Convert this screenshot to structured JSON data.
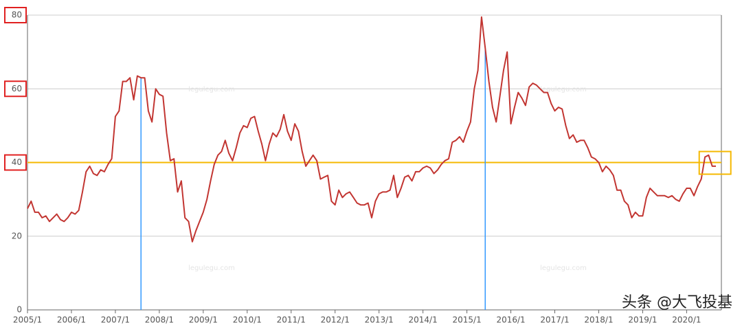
{
  "chart_data": {
    "type": "line",
    "categories": [
      "2005/1",
      null,
      null,
      null,
      null,
      null,
      null,
      null,
      null,
      null,
      null,
      null,
      "2006/1",
      null,
      null,
      null,
      null,
      null,
      null,
      null,
      null,
      null,
      null,
      null,
      "2007/1",
      null,
      null,
      null,
      null,
      null,
      null,
      null,
      null,
      null,
      null,
      null,
      "2008/1",
      null,
      null,
      null,
      null,
      null,
      null,
      null,
      null,
      null,
      null,
      null,
      "2009/1",
      null,
      null,
      null,
      null,
      null,
      null,
      null,
      null,
      null,
      null,
      null,
      "2010/1",
      null,
      null,
      null,
      null,
      null,
      null,
      null,
      null,
      null,
      null,
      null,
      "2011/1",
      null,
      null,
      null,
      null,
      null,
      null,
      null,
      null,
      null,
      null,
      null,
      "2012/1",
      null,
      null,
      null,
      null,
      null,
      null,
      null,
      null,
      null,
      null,
      null,
      "2013/1",
      null,
      null,
      null,
      null,
      null,
      null,
      null,
      null,
      null,
      null,
      null,
      "2014/1",
      null,
      null,
      null,
      null,
      null,
      null,
      null,
      null,
      null,
      null,
      null,
      "2015/1",
      null,
      null,
      null,
      null,
      null,
      null,
      null,
      null,
      null,
      null,
      null,
      "2016/1",
      null,
      null,
      null,
      null,
      null,
      null,
      null,
      null,
      null,
      null,
      null,
      "2017/1",
      null,
      null,
      null,
      null,
      null,
      null,
      null,
      null,
      null,
      null,
      null,
      "2018/1",
      null,
      null,
      null,
      null,
      null,
      null,
      null,
      null,
      null,
      null,
      null,
      "2019/1",
      null,
      null,
      null,
      null,
      null,
      null,
      null,
      null,
      null,
      null,
      null,
      "2020/1",
      null,
      null,
      null,
      null,
      null,
      null,
      null,
      null
    ],
    "series": [
      {
        "color": "#c23531",
        "values": [
          27.5,
          29.5,
          26.5,
          26.5,
          25,
          25.5,
          24,
          25,
          26,
          24.5,
          24,
          25,
          26.5,
          26,
          27,
          32,
          37.5,
          39,
          37,
          36.5,
          38,
          37.5,
          39.5,
          41,
          52.5,
          54,
          62,
          62,
          63,
          57,
          63.5,
          63,
          63,
          54,
          51,
          60,
          58.5,
          58,
          48,
          40.5,
          41,
          32,
          35,
          25,
          24,
          18.5,
          21.5,
          24,
          26.5,
          30,
          35,
          39.5,
          42,
          43,
          46,
          42.5,
          40.5,
          44,
          48,
          50,
          49.5,
          52,
          52.5,
          48.5,
          45,
          40.5,
          45,
          48,
          47,
          49,
          53,
          48.5,
          46,
          50.5,
          48.5,
          43,
          39,
          40.5,
          42,
          40.5,
          35.5,
          36,
          36.5,
          29.5,
          28.5,
          32.5,
          30.5,
          31.5,
          32,
          30.5,
          29,
          28.5,
          28.5,
          29,
          25,
          29.5,
          31.5,
          32,
          32,
          32.5,
          36.5,
          30.5,
          33,
          36,
          36.5,
          35,
          37.5,
          37.5,
          38.5,
          39,
          38.5,
          37,
          38,
          39.5,
          40.5,
          41,
          45.5,
          46,
          47,
          45.5,
          48.5,
          51,
          60,
          65,
          79.5,
          71,
          62,
          55,
          51,
          58,
          65,
          70,
          50.5,
          55,
          59,
          57.5,
          55.5,
          60.5,
          61.5,
          61,
          60,
          59,
          59,
          56,
          54,
          55,
          54.5,
          50,
          46.5,
          47.5,
          45.5,
          46,
          46,
          44,
          41.5,
          41,
          40,
          37.5,
          39,
          38,
          36.5,
          32.5,
          32.5,
          29.5,
          28.5,
          25,
          26.5,
          25.5,
          25.5,
          30.5,
          33,
          32,
          31,
          31,
          31,
          30.5,
          31,
          30,
          29.5,
          31.5,
          33,
          33,
          31,
          33.5,
          35.5,
          41.5,
          42,
          39,
          39
        ]
      }
    ],
    "ylim": [
      0,
      80
    ],
    "yticks": [
      0,
      20,
      40,
      60,
      80
    ],
    "grid": true,
    "reference_line": {
      "value": 40,
      "color": "#f5b800"
    },
    "highlight_points": {
      "indices": [
        31,
        125
      ],
      "color": "#3399ff"
    },
    "watermark": "legulegu.com",
    "credit": "头条 @大飞投基"
  }
}
